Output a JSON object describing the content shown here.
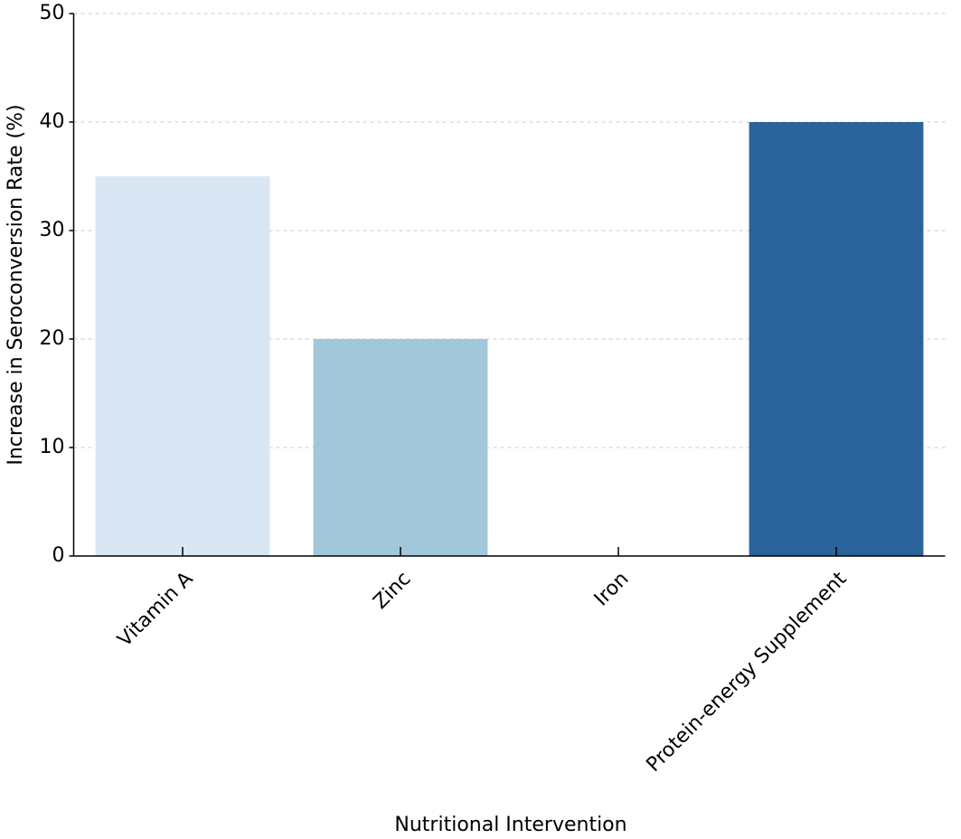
{
  "chart_data": {
    "type": "bar",
    "categories": [
      "Vitamin A",
      "Zinc",
      "Iron",
      "Protein-energy Supplement"
    ],
    "values": [
      35,
      20,
      0,
      40
    ],
    "colors": [
      "#d9e6f3",
      "#a2c6da",
      "#6aaed6",
      "#2a6399"
    ],
    "x_label": "Nutritional Intervention",
    "y_label": "Increase in Seroconversion Rate (%)",
    "ylim": [
      0,
      50
    ],
    "yticks": [
      0,
      10,
      20,
      30,
      40,
      50
    ],
    "grid": true
  }
}
